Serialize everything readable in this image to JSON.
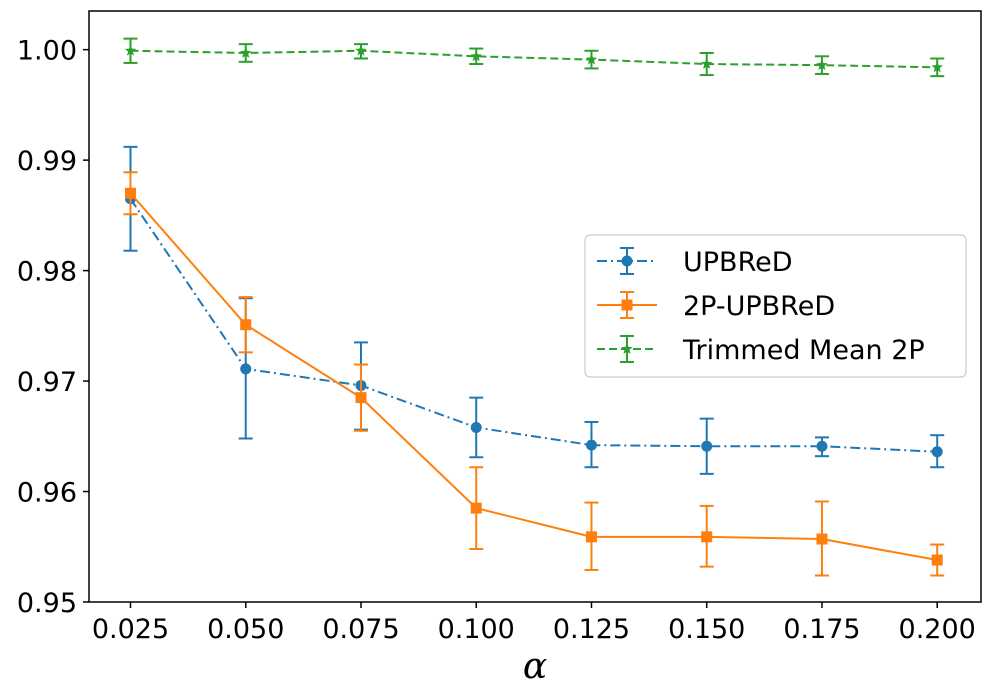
{
  "chart_data": {
    "type": "line",
    "title": "",
    "xlabel": "α",
    "ylabel": "",
    "categories": [
      "0.025",
      "0.050",
      "0.075",
      "0.100",
      "0.125",
      "0.150",
      "0.175",
      "0.200"
    ],
    "x": [
      0.025,
      0.05,
      0.075,
      0.1,
      0.125,
      0.15,
      0.175,
      0.2
    ],
    "xlim": [
      0.016,
      0.2095
    ],
    "ylim": [
      0.95,
      1.0035
    ],
    "yticks": [
      0.95,
      0.96,
      0.97,
      0.98,
      0.99,
      1.0
    ],
    "ytick_labels": [
      "0.95",
      "0.96",
      "0.97",
      "0.98",
      "0.99",
      "1.00"
    ],
    "grid": false,
    "legend_position": "center-right",
    "series": [
      {
        "name": "UPBReD",
        "color": "#1f77b4",
        "linestyle": "dashdot",
        "marker": "circle",
        "values": [
          0.9865,
          0.9711,
          0.9696,
          0.9658,
          0.9642,
          0.9641,
          0.9641,
          0.9636
        ],
        "err_low": [
          0.9818,
          0.9648,
          0.9656,
          0.9631,
          0.9622,
          0.9616,
          0.9632,
          0.9622
        ],
        "err_high": [
          0.9912,
          0.9775,
          0.9735,
          0.9685,
          0.9663,
          0.9666,
          0.9649,
          0.9651
        ]
      },
      {
        "name": "2P-UPBReD",
        "color": "#ff7f0e",
        "linestyle": "solid",
        "marker": "square",
        "values": [
          0.987,
          0.9751,
          0.9685,
          0.9585,
          0.9559,
          0.9559,
          0.9557,
          0.9538
        ],
        "err_low": [
          0.9851,
          0.9726,
          0.9655,
          0.9548,
          0.9529,
          0.9532,
          0.9524,
          0.9524
        ],
        "err_high": [
          0.9889,
          0.9776,
          0.9715,
          0.9622,
          0.959,
          0.9587,
          0.9591,
          0.9552
        ]
      },
      {
        "name": "Trimmed Mean 2P",
        "color": "#2ca02c",
        "linestyle": "dashed",
        "marker": "star",
        "values": [
          0.9999,
          0.9997,
          0.9999,
          0.9994,
          0.9991,
          0.9987,
          0.9986,
          0.9984
        ],
        "err_low": [
          0.9988,
          0.9989,
          0.9992,
          0.9987,
          0.9983,
          0.9977,
          0.9978,
          0.9976
        ],
        "err_high": [
          1.001,
          1.0005,
          1.0005,
          1.0001,
          0.9999,
          0.9997,
          0.9994,
          0.9992
        ]
      }
    ]
  }
}
